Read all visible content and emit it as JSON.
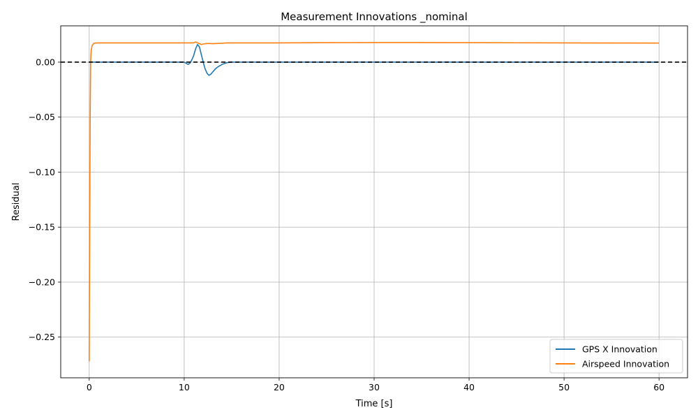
{
  "chart_data": {
    "type": "line",
    "title": "Measurement Innovations _nominal",
    "xlabel": "Time [s]",
    "ylabel": "Residual",
    "xlim": [
      -3,
      63
    ],
    "ylim": [
      -0.287,
      0.033
    ],
    "xticks": [
      0,
      10,
      20,
      30,
      40,
      50,
      60
    ],
    "xtick_labels": [
      "0",
      "10",
      "20",
      "30",
      "40",
      "50",
      "60"
    ],
    "yticks": [
      0.0,
      -0.05,
      -0.1,
      -0.15,
      -0.2,
      -0.25
    ],
    "ytick_labels": [
      "0.00",
      "−0.05",
      "−0.10",
      "−0.15",
      "−0.20",
      "−0.25"
    ],
    "grid": true,
    "legend_position": "lower-right",
    "reference_line": {
      "y": 0.0,
      "style": "dashed",
      "color": "#000000"
    },
    "series": [
      {
        "name": "GPS X Innovation",
        "color": "#1f77b4",
        "x": [
          0,
          2,
          4,
          6,
          8,
          10,
          10.2,
          10.4,
          10.6,
          10.8,
          11.0,
          11.2,
          11.4,
          11.6,
          11.8,
          12.0,
          12.2,
          12.4,
          12.6,
          12.8,
          13.0,
          13.3,
          13.6,
          14.0,
          14.5,
          15.0,
          20,
          30,
          40,
          50,
          60
        ],
        "y": [
          0,
          0,
          0,
          0,
          0,
          0,
          -0.001,
          -0.002,
          -0.001,
          0.002,
          0.006,
          0.012,
          0.016,
          0.014,
          0.007,
          0.0,
          -0.006,
          -0.01,
          -0.012,
          -0.011,
          -0.009,
          -0.006,
          -0.004,
          -0.002,
          -0.0005,
          0.0,
          0.0,
          0.0,
          0.0,
          0.0,
          0.0
        ]
      },
      {
        "name": "Airspeed Innovation",
        "color": "#ff7f0e",
        "x": [
          0,
          0.05,
          0.1,
          0.15,
          0.2,
          0.3,
          0.5,
          0.8,
          2,
          5,
          10,
          11.0,
          11.2,
          11.5,
          11.8,
          12.2,
          12.6,
          13.0,
          13.5,
          14.0,
          14.5,
          20,
          25,
          30,
          35,
          40,
          45,
          50,
          55,
          60
        ],
        "y": [
          -0.272,
          -0.15,
          -0.05,
          0.0,
          0.01,
          0.015,
          0.0172,
          0.0175,
          0.0175,
          0.0175,
          0.0175,
          0.0175,
          0.0183,
          0.0172,
          0.016,
          0.0168,
          0.017,
          0.0168,
          0.017,
          0.0172,
          0.0175,
          0.0175,
          0.0177,
          0.0178,
          0.0178,
          0.0177,
          0.0176,
          0.0175,
          0.0174,
          0.0173
        ]
      }
    ]
  }
}
